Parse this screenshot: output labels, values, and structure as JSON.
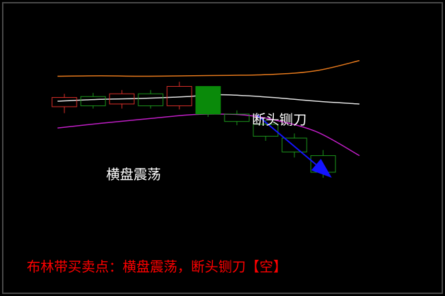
{
  "chart_data": {
    "type": "candlestick",
    "indicator": "bollinger-bands",
    "colors": {
      "background": "#000000",
      "upper_band": "#e87a1c",
      "middle_band": "#e6e6e6",
      "lower_band": "#c21ec8",
      "bullish": "#e0302a",
      "bearish": "#1d9a1d",
      "big_bear_fill": "#0a8a0a",
      "arrow": "#1414ff",
      "border": "#4a4a4a"
    },
    "price_scale": {
      "min": 0,
      "max": 100
    },
    "candles": [
      {
        "open": 54,
        "close": 64,
        "high": 68,
        "low": 47,
        "kind": "up"
      },
      {
        "open": 65,
        "close": 55,
        "high": 69,
        "low": 52,
        "kind": "down"
      },
      {
        "open": 57,
        "close": 68,
        "high": 72,
        "low": 52,
        "kind": "up"
      },
      {
        "open": 68,
        "close": 55,
        "high": 72,
        "low": 52,
        "kind": "down"
      },
      {
        "open": 55,
        "close": 76,
        "high": 81,
        "low": 51,
        "kind": "up"
      },
      {
        "open": 76,
        "close": 46,
        "high": 76,
        "low": 43,
        "kind": "down",
        "filled": true
      },
      {
        "open": 46,
        "close": 38,
        "high": 50,
        "low": 34,
        "kind": "down"
      },
      {
        "open": 35,
        "close": 22,
        "high": 40,
        "low": 17,
        "kind": "down"
      },
      {
        "open": 20,
        "close": 5,
        "high": 25,
        "low": -1,
        "kind": "down"
      },
      {
        "open": 1,
        "close": -17,
        "high": 7,
        "low": -23,
        "kind": "down"
      }
    ],
    "bands": {
      "upper": [
        [
          0,
          87
        ],
        [
          1.5,
          87.5
        ],
        [
          3,
          87
        ],
        [
          4.5,
          87.5
        ],
        [
          6,
          88
        ],
        [
          7.5,
          89
        ],
        [
          9,
          93
        ],
        [
          10.5,
          104
        ]
      ],
      "middle": [
        [
          0,
          60
        ],
        [
          1.5,
          62
        ],
        [
          3,
          63
        ],
        [
          4.5,
          65
        ],
        [
          5.5,
          67
        ],
        [
          6.5,
          66
        ],
        [
          7.5,
          64
        ],
        [
          9,
          60
        ],
        [
          10.5,
          57
        ]
      ],
      "lower": [
        [
          0,
          31
        ],
        [
          1.5,
          36
        ],
        [
          3,
          40.5
        ],
        [
          4.5,
          45
        ],
        [
          5.5,
          46
        ],
        [
          6.5,
          45
        ],
        [
          7.5,
          40
        ],
        [
          9,
          27
        ],
        [
          10.5,
          1
        ]
      ]
    },
    "arrow": {
      "from": [
        6.7,
        45
      ],
      "to": [
        9.3,
        -23
      ]
    },
    "annotations": {
      "guillotine": "断头铡刀",
      "consolidation": "横盘震荡"
    },
    "caption": "布林带买卖点：横盘震荡，断头铡刀【空】"
  }
}
